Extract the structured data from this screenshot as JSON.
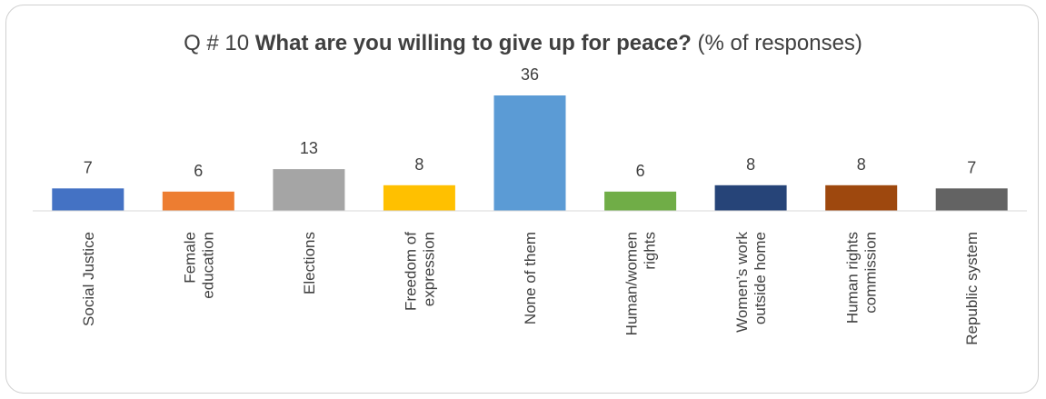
{
  "chart_data": {
    "type": "bar",
    "title": {
      "prefix": "Q # 10 ",
      "main": "What are you willing to give up for peace?",
      "suffix": " (% of responses)"
    },
    "categories": [
      [
        "Social Justice"
      ],
      [
        "Female",
        "education"
      ],
      [
        "Elections"
      ],
      [
        "Freedom of",
        "expression"
      ],
      [
        "None of them"
      ],
      [
        "Human/women",
        "rights"
      ],
      [
        "Women’s work",
        "outside home"
      ],
      [
        "Human rights",
        "commission"
      ],
      [
        "Republic system"
      ]
    ],
    "values": [
      7,
      6,
      13,
      8,
      36,
      6,
      8,
      8,
      7
    ],
    "colors": [
      "#4472C4",
      "#ED7D31",
      "#A5A5A5",
      "#FFC000",
      "#5B9BD5",
      "#70AD47",
      "#264478",
      "#9E480E",
      "#636363"
    ],
    "xlabel": "",
    "ylabel": "",
    "ylim": [
      0,
      36
    ],
    "grid": false,
    "legend": "none",
    "data_labels": true
  }
}
